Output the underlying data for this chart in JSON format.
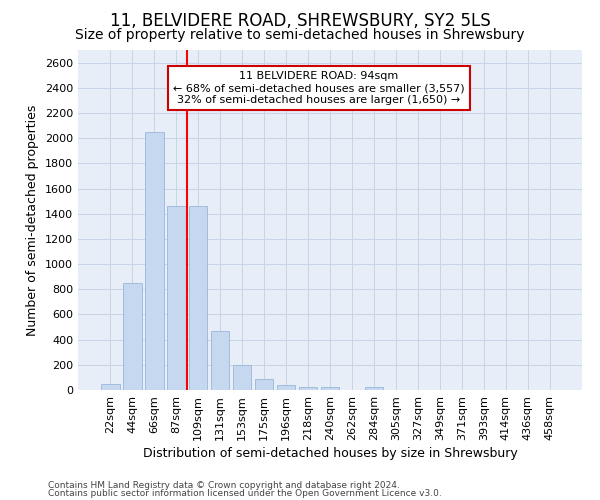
{
  "title": "11, BELVIDERE ROAD, SHREWSBURY, SY2 5LS",
  "subtitle": "Size of property relative to semi-detached houses in Shrewsbury",
  "xlabel": "Distribution of semi-detached houses by size in Shrewsbury",
  "ylabel": "Number of semi-detached properties",
  "categories": [
    "22sqm",
    "44sqm",
    "66sqm",
    "87sqm",
    "109sqm",
    "131sqm",
    "153sqm",
    "175sqm",
    "196sqm",
    "218sqm",
    "240sqm",
    "262sqm",
    "284sqm",
    "305sqm",
    "327sqm",
    "349sqm",
    "371sqm",
    "393sqm",
    "414sqm",
    "436sqm",
    "458sqm"
  ],
  "values": [
    50,
    850,
    2050,
    1460,
    1460,
    470,
    200,
    90,
    40,
    25,
    25,
    0,
    20,
    0,
    0,
    0,
    0,
    0,
    0,
    0,
    0
  ],
  "bar_color": "#c5d8f0",
  "bar_edge_color": "#9ab8d8",
  "red_line_x": 3.5,
  "annotation_line1": "11 BELVIDERE ROAD: 94sqm",
  "annotation_line2": "← 68% of semi-detached houses are smaller (3,557)",
  "annotation_line3": "32% of semi-detached houses are larger (1,650) →",
  "annotation_box_color": "#ffffff",
  "annotation_box_edge": "#cc0000",
  "ylim": [
    0,
    2700
  ],
  "yticks": [
    0,
    200,
    400,
    600,
    800,
    1000,
    1200,
    1400,
    1600,
    1800,
    2000,
    2200,
    2400,
    2600
  ],
  "footer1": "Contains HM Land Registry data © Crown copyright and database right 2024.",
  "footer2": "Contains public sector information licensed under the Open Government Licence v3.0.",
  "bg_color": "#ffffff",
  "plot_bg_color": "#e8eef8",
  "grid_color": "#c8d4e8",
  "title_fontsize": 12,
  "subtitle_fontsize": 10,
  "ylabel_fontsize": 9,
  "xlabel_fontsize": 9,
  "tick_fontsize": 8,
  "annot_fontsize": 8
}
